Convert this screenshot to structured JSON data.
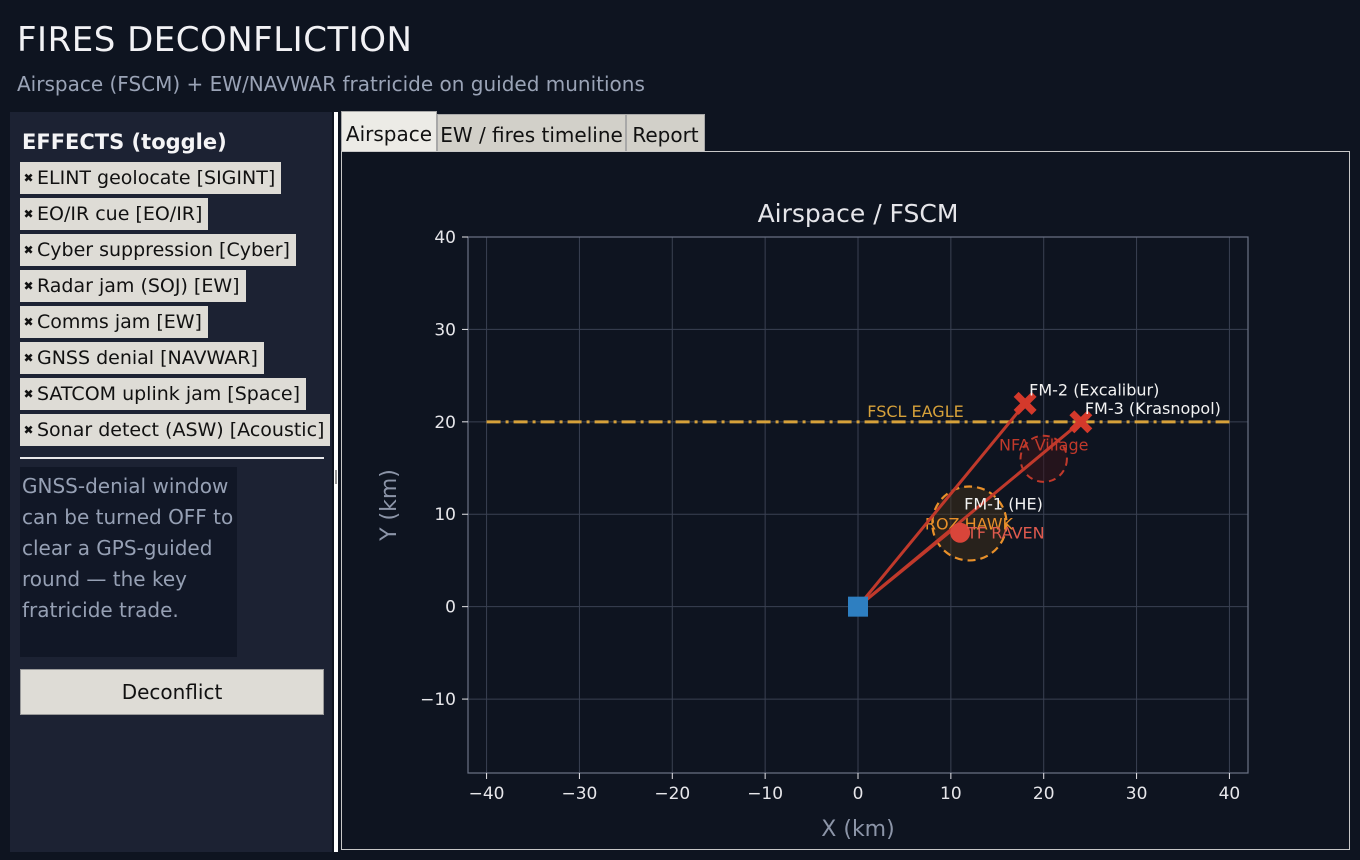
{
  "header": {
    "title": "FIRES DECONFLICTION",
    "subtitle": "Airspace (FSCM) + EW/NAVWAR fratricide on guided munitions"
  },
  "sidebar": {
    "heading": "EFFECTS (toggle)",
    "effects": [
      {
        "label": "ELINT geolocate  [SIGINT]",
        "checked": true
      },
      {
        "label": "EO/IR cue  [EO/IR]",
        "checked": true
      },
      {
        "label": "Cyber suppression  [Cyber]",
        "checked": true
      },
      {
        "label": "Radar jam (SOJ)  [EW]",
        "checked": true
      },
      {
        "label": "Comms jam  [EW]",
        "checked": true
      },
      {
        "label": "GNSS denial  [NAVWAR]",
        "checked": true
      },
      {
        "label": "SATCOM uplink jam  [Space]",
        "checked": true
      },
      {
        "label": "Sonar detect (ASW)  [Acoustic]",
        "checked": true
      }
    ],
    "check_glyph": "✖",
    "hint": "GNSS-denial window can be turned OFF to clear a GPS-guided round — the key fratricide trade.",
    "deconflict_label": "Deconflict"
  },
  "tabs": [
    {
      "label": "Airspace",
      "active": true
    },
    {
      "label": "EW / fires timeline",
      "active": false
    },
    {
      "label": "Report",
      "active": false
    }
  ],
  "chart_data": {
    "type": "scatter",
    "title": "Airspace / FSCM",
    "xlabel": "X (km)",
    "ylabel": "Y (km)",
    "xlim": [
      -42,
      42
    ],
    "ylim": [
      -18,
      40
    ],
    "xticks": [
      -40,
      -30,
      -20,
      -10,
      0,
      10,
      20,
      30,
      40
    ],
    "yticks": [
      -10,
      0,
      10,
      20,
      30,
      40
    ],
    "xtick_labels": [
      "−40",
      "−30",
      "−20",
      "−10",
      "0",
      "10",
      "20",
      "30",
      "40"
    ],
    "ytick_labels": [
      "−10",
      "0",
      "10",
      "20",
      "30",
      "40"
    ],
    "grid": true,
    "colors": {
      "background": "#0e1420",
      "grid": "#3a4152",
      "axes_text": "#e6e6ea",
      "label_text": "#8c95a8",
      "fscl": "#d6a13a",
      "roz": "#e8902a",
      "nfa": "#c0392b",
      "munition": "#c0392b",
      "origin": "#2e7fc1",
      "friendly_label": "#e05a4e",
      "munition_label": "#f2f2f2"
    },
    "fscl": {
      "label": "FSCL EAGLE",
      "y": 20,
      "x_range": [
        -40,
        40
      ],
      "style": "dash-dot"
    },
    "roz": {
      "label": "ROZ HAWK",
      "center": [
        12,
        9
      ],
      "radius": 4
    },
    "nfa": {
      "label": "NFA Village",
      "center": [
        20,
        16
      ],
      "radius": 2.5
    },
    "friendly": {
      "label": "TF RAVEN",
      "position": [
        11,
        8
      ]
    },
    "origin": {
      "position": [
        0,
        0
      ]
    },
    "munitions": [
      {
        "label": "FM-1 (HE)",
        "impact": [
          11,
          9
        ]
      },
      {
        "label": "FM-2 (Excalibur)",
        "impact": [
          18,
          22
        ]
      },
      {
        "label": "FM-3 (Krasnopol)",
        "impact": [
          24,
          20
        ]
      }
    ]
  }
}
